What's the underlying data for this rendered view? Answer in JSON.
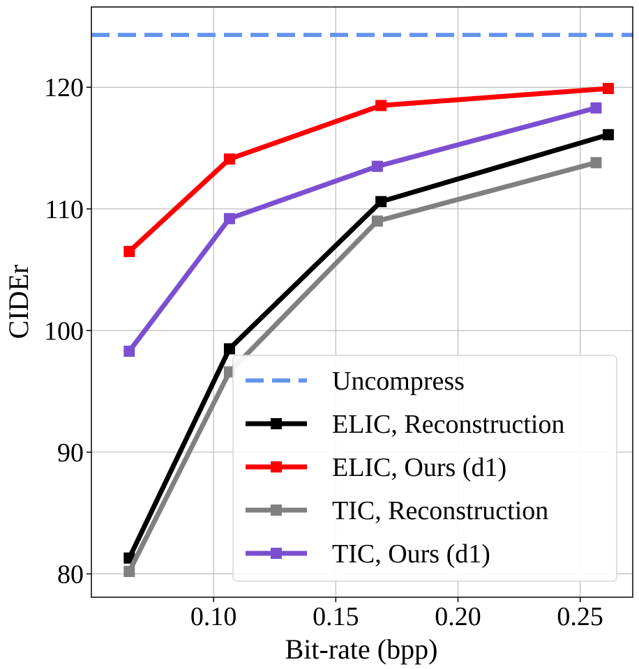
{
  "chart_data": {
    "type": "line",
    "title": "",
    "xlabel": "Bit-rate (bpp)",
    "ylabel": "CIDEr",
    "xlim": [
      0.05,
      0.2715
    ],
    "ylim": [
      78.08,
      126.6
    ],
    "xticks": [
      0.1,
      0.15,
      0.2,
      0.25
    ],
    "xtick_labels": [
      "0.10",
      "0.15",
      "0.20",
      "0.25"
    ],
    "yticks": [
      80,
      90,
      100,
      110,
      120
    ],
    "ytick_labels": [
      "80",
      "90",
      "100",
      "110",
      "120"
    ],
    "grid": true,
    "legend_position": "bottom-right",
    "baseline": {
      "name": "Uncompress",
      "value": 124.3,
      "color": "#6495ed",
      "style": "dashed"
    },
    "series": [
      {
        "name": "ELIC, Reconstruction",
        "color": "#000000",
        "x": [
          0.0655,
          0.1065,
          0.1685,
          0.2615
        ],
        "y": [
          81.3,
          98.5,
          110.6,
          116.1
        ]
      },
      {
        "name": "ELIC, Ours (d1)",
        "color": "#ff0000",
        "x": [
          0.0655,
          0.1065,
          0.1685,
          0.2615
        ],
        "y": [
          106.5,
          114.1,
          118.5,
          119.9
        ]
      },
      {
        "name": "TIC, Reconstruction",
        "color": "#808080",
        "x": [
          0.0655,
          0.1065,
          0.167,
          0.2565
        ],
        "y": [
          80.2,
          96.6,
          109.0,
          113.8
        ]
      },
      {
        "name": "TIC, Ours (d1)",
        "color": "#7b4fd0",
        "x": [
          0.0655,
          0.1065,
          0.167,
          0.2565
        ],
        "y": [
          98.3,
          109.2,
          113.5,
          118.3
        ]
      }
    ]
  }
}
